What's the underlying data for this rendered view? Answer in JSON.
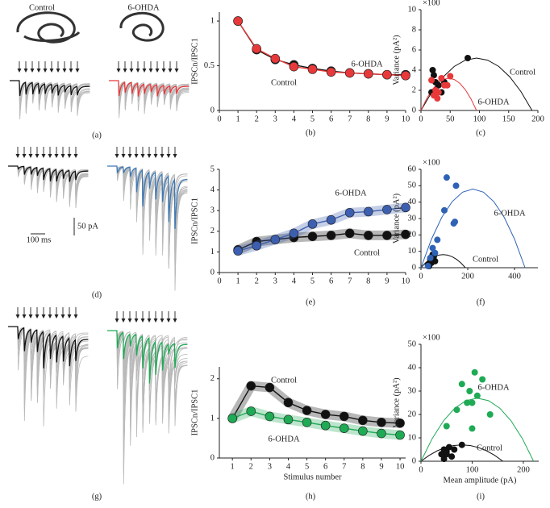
{
  "traces": {
    "a": {
      "label": "(a)",
      "titles": [
        "Control",
        "6-OHDA"
      ]
    },
    "d": {
      "label": "(d)",
      "scale": [
        "50 pA",
        "100 ms"
      ]
    },
    "g": {
      "label": "(g)"
    }
  },
  "chart_data": [
    {
      "type": "line",
      "label": "(b)",
      "ylabel": "IPSCn/IPSC1",
      "x": [
        1,
        2,
        3,
        4,
        5,
        6,
        7,
        8,
        9,
        10
      ],
      "xlim": [
        0,
        10
      ],
      "xticks": [
        0,
        1,
        2,
        3,
        4,
        5,
        6,
        7,
        8,
        9,
        10
      ],
      "ylim": [
        0,
        1.1
      ],
      "yticks": [
        0,
        0.5,
        1
      ],
      "band": false,
      "series": [
        {
          "name": "Control",
          "color": "#111111",
          "values": [
            1,
            0.68,
            0.57,
            0.51,
            0.47,
            0.44,
            0.42,
            0.41,
            0.4,
            0.4
          ]
        },
        {
          "name": "6-OHDA",
          "color": "#e8393a",
          "values": [
            1,
            0.69,
            0.58,
            0.49,
            0.46,
            0.43,
            0.42,
            0.41,
            0.4,
            0.39
          ]
        }
      ]
    },
    {
      "type": "scatter",
      "label": "(c)",
      "ylabel": "Variance (pA²)",
      "y_multiplier": "×100",
      "xlim": [
        0,
        200
      ],
      "xticks": [
        0,
        50,
        100,
        150,
        200
      ],
      "ylim": [
        0,
        10
      ],
      "yticks": [
        0,
        2,
        4,
        6,
        8,
        10
      ],
      "series": [
        {
          "name": "Control",
          "color": "#111111",
          "x": [
            20,
            22,
            25,
            18,
            30,
            35,
            40,
            80,
            25
          ],
          "values": [
            4,
            3.5,
            2,
            1.8,
            2.5,
            1.8,
            2.8,
            5.2,
            2.8
          ],
          "fit": {
            "x": [
              0,
              19,
              38,
              57,
              76,
              95,
              114,
              133,
              152,
              171,
              190
            ],
            "values": [
              0,
              1.87,
              3.33,
              4.37,
              4.99,
              5.2,
              4.99,
              4.37,
              3.33,
              1.87,
              0
            ]
          }
        },
        {
          "name": "6-OHDA",
          "color": "#e8393a",
          "x": [
            18,
            22,
            28,
            35,
            40,
            45,
            50,
            25,
            30
          ],
          "values": [
            3,
            1.5,
            1.2,
            3.2,
            2.5,
            2.5,
            3.4,
            2,
            1.8
          ],
          "fit": {
            "x": [
              0,
              9.5,
              19,
              28.5,
              38,
              47.5,
              57,
              66.5,
              76,
              85.5,
              95
            ],
            "values": [
              0,
              1.15,
              2.05,
              2.69,
              3.07,
              3.2,
              3.07,
              2.69,
              2.05,
              1.15,
              0
            ]
          }
        }
      ]
    },
    {
      "type": "line",
      "label": "(e)",
      "ylabel": "IPSCn/IPSC1",
      "x": [
        1,
        2,
        3,
        4,
        5,
        6,
        7,
        8,
        9,
        10
      ],
      "xlim": [
        0,
        10
      ],
      "xticks": [
        0,
        1,
        2,
        3,
        4,
        5,
        6,
        7,
        8,
        9,
        10
      ],
      "ylim": [
        0,
        5
      ],
      "yticks": [
        0,
        1,
        2,
        3,
        4,
        5
      ],
      "band": true,
      "series": [
        {
          "name": "Control",
          "color": "#111111",
          "values": [
            1.1,
            1.5,
            1.6,
            1.7,
            1.75,
            1.8,
            1.9,
            1.8,
            1.8,
            1.85
          ]
        },
        {
          "name": "6-OHDA",
          "color": "#3d5fb0",
          "values": [
            1.05,
            1.3,
            1.6,
            1.9,
            2.35,
            2.55,
            2.9,
            2.95,
            3.05,
            3.15
          ]
        }
      ]
    },
    {
      "type": "scatter",
      "label": "(f)",
      "ylabel": "Variance (pA²)",
      "y_multiplier": "×100",
      "xlim": [
        0,
        500
      ],
      "xticks": [
        0,
        200,
        400
      ],
      "ylim": [
        0,
        60
      ],
      "yticks": [
        0,
        10,
        20,
        30,
        40,
        50,
        60
      ],
      "series": [
        {
          "name": "Control",
          "color": "#111111",
          "x": [
            30,
            40,
            50,
            55,
            60,
            45,
            35
          ],
          "values": [
            2,
            5,
            8,
            7,
            4,
            3,
            1
          ],
          "fit": {
            "x": [
              0,
              19,
              38,
              57,
              76,
              95,
              114,
              133,
              152,
              171,
              190
            ],
            "values": [
              0,
              2.88,
              5.12,
              6.72,
              7.68,
              8,
              7.68,
              6.72,
              5.12,
              2.88,
              0
            ]
          }
        },
        {
          "name": "6-OHDA",
          "color": "#2f62b5",
          "x": [
            40,
            50,
            70,
            100,
            110,
            140,
            145,
            150,
            30,
            60
          ],
          "values": [
            6,
            12,
            17,
            35,
            55,
            27,
            28,
            50,
            1,
            9
          ],
          "fit": {
            "x": [
              0,
              44.5,
              89,
              133.5,
              178,
              222.5,
              267,
              311.5,
              356,
              400.5,
              445
            ],
            "values": [
              0,
              17.28,
              30.72,
              40.32,
              46.08,
              48,
              46.08,
              40.32,
              30.72,
              17.28,
              0
            ]
          }
        }
      ]
    },
    {
      "type": "line",
      "label": "(h)",
      "ylabel": "IPSCn/IPSC1",
      "xlabel": "Stimulus number",
      "x": [
        1,
        2,
        3,
        4,
        5,
        6,
        7,
        8,
        9,
        10
      ],
      "xlim": [
        0.3,
        10.3
      ],
      "xticks": [
        1,
        2,
        3,
        4,
        5,
        6,
        7,
        8,
        9,
        10
      ],
      "ylim": [
        0,
        2.3
      ],
      "yticks": [
        0,
        1,
        2
      ],
      "band": true,
      "series": [
        {
          "name": "Control",
          "color": "#111111",
          "values": [
            1,
            1.82,
            1.78,
            1.4,
            1.2,
            1.1,
            1.05,
            0.95,
            0.9,
            0.88
          ]
        },
        {
          "name": "6-OHDA",
          "color": "#1faa55",
          "values": [
            1,
            1.18,
            1.05,
            0.97,
            0.9,
            0.82,
            0.75,
            0.68,
            0.62,
            0.58
          ]
        }
      ]
    },
    {
      "type": "scatter",
      "label": "(i)",
      "ylabel": "Variance (pA²)",
      "y_multiplier": "×100",
      "xlabel": "Mean amplitude (pA)",
      "xlim": [
        0,
        230
      ],
      "xticks": [
        0,
        100,
        200
      ],
      "ylim": [
        0,
        50
      ],
      "yticks": [
        0,
        10,
        20,
        30,
        40,
        50
      ],
      "series": [
        {
          "name": "Control",
          "color": "#111111",
          "x": [
            40,
            45,
            50,
            55,
            60,
            80,
            45,
            50,
            65
          ],
          "values": [
            3,
            5,
            4,
            6,
            2,
            7,
            1,
            3,
            5
          ],
          "fit": {
            "x": [
              0,
              16,
              32,
              48,
              64,
              80,
              96,
              112,
              128,
              144,
              160
            ],
            "values": [
              0,
              2.52,
              4.48,
              5.88,
              6.72,
              7,
              6.72,
              5.88,
              4.48,
              2.52,
              0
            ]
          }
        },
        {
          "name": "6-OHDA",
          "color": "#1faa55",
          "x": [
            50,
            70,
            80,
            90,
            100,
            105,
            110,
            120,
            135,
            100,
            95
          ],
          "values": [
            15,
            22,
            33,
            25,
            25,
            38,
            28,
            35,
            20,
            14,
            30
          ],
          "fit": {
            "x": [
              0,
              22,
              44,
              66,
              88,
              110,
              132,
              154,
              176,
              198,
              220
            ],
            "values": [
              0,
              9.72,
              17.28,
              22.68,
              25.92,
              27,
              25.92,
              22.68,
              17.28,
              9.72,
              0
            ]
          }
        }
      ]
    }
  ]
}
